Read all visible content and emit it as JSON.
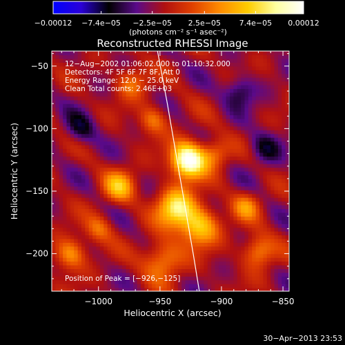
{
  "chart_data": {
    "type": "heatmap",
    "title": "Reconstructed RHESSI Image",
    "xlabel": "Heliocentric X (arcsec)",
    "ylabel": "Heliocentric Y (arcsec)",
    "xlim": [
      -1038,
      -845
    ],
    "ylim": [
      -230,
      -38
    ],
    "xticks": [
      -1000,
      -950,
      -900,
      -850
    ],
    "yticks": [
      -50,
      -100,
      -150,
      -200
    ],
    "xtick_labels": [
      "−1000",
      "−950",
      "−900",
      "−850"
    ],
    "ytick_labels": [
      "−50",
      "−100",
      "−150",
      "−200"
    ],
    "colorbar": {
      "min": -0.00012,
      "max": 0.00012,
      "ticks": [
        -0.00012,
        -7.4e-05,
        -2.5e-05,
        2.5e-05,
        7.4e-05,
        0.00012
      ],
      "tick_labels": [
        "−0.00012",
        "−7.4e−05",
        "−2.5e−05",
        "2.5e−05",
        "7.4e−05",
        "0.00012"
      ],
      "unit_label": "(photons cm⁻² s⁻¹ asec⁻²)",
      "colormap": [
        "#0000ff",
        "#2a00d8",
        "#000000",
        "#5a0a8a",
        "#b01010",
        "#e04000",
        "#ff8c00",
        "#ffcc00",
        "#ffffa0",
        "#ffffff"
      ]
    },
    "info_lines": [
      "12−Aug−2002 01:06:02.000 to 01:10:32.000",
      "Detectors: 4F 5F 6F 7F 8F, Att 0",
      "Energy Range: 12.0 − 25.0 keV",
      "Clean     Total counts: 2.46E+03"
    ],
    "peak_label": "Position of Peak = [−926,−125]",
    "peak": {
      "x": -926,
      "y": -125
    },
    "limb": [
      [
        -952,
        -38
      ],
      [
        -944,
        -80
      ],
      [
        -937,
        -120
      ],
      [
        -930,
        -160
      ],
      [
        -923,
        -200
      ],
      [
        -918,
        -230
      ]
    ],
    "hotspots": [
      {
        "x": -927,
        "y": -125,
        "amp": 1.0,
        "sigma": 10
      },
      {
        "x": -937,
        "y": -163,
        "amp": 0.7,
        "sigma": 11
      },
      {
        "x": -918,
        "y": -178,
        "amp": 0.6,
        "sigma": 11
      },
      {
        "x": -983,
        "y": -146,
        "amp": 0.5,
        "sigma": 9
      },
      {
        "x": -1023,
        "y": -200,
        "amp": 0.45,
        "sigma": 9
      },
      {
        "x": -948,
        "y": -205,
        "amp": 0.45,
        "sigma": 11
      },
      {
        "x": -973,
        "y": -63,
        "amp": 0.35,
        "sigma": 9
      },
      {
        "x": -870,
        "y": -198,
        "amp": 0.45,
        "sigma": 9
      },
      {
        "x": -1000,
        "y": -180,
        "amp": 0.3,
        "sigma": 8
      },
      {
        "x": -880,
        "y": -162,
        "amp": 0.35,
        "sigma": 8
      },
      {
        "x": -956,
        "y": -93,
        "amp": 0.35,
        "sigma": 8
      },
      {
        "x": -905,
        "y": -120,
        "amp": 0.35,
        "sigma": 8
      },
      {
        "x": -1015,
        "y": -100,
        "amp": -0.3,
        "sigma": 9
      },
      {
        "x": -885,
        "y": -70,
        "amp": -0.3,
        "sigma": 9
      },
      {
        "x": -865,
        "y": -115,
        "amp": -0.3,
        "sigma": 9
      }
    ]
  },
  "footer": {
    "timestamp": "30−Apr−2013 23:53"
  }
}
